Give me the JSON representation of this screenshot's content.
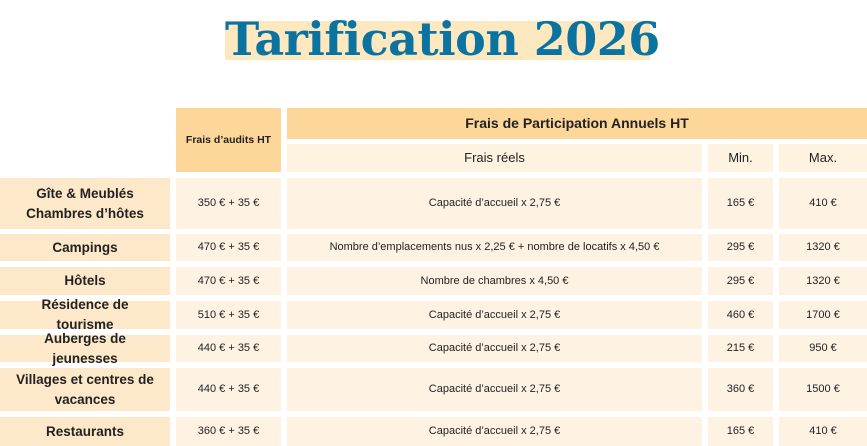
{
  "title": "Tarification 2026",
  "colors": {
    "title": "#0a73a0",
    "title_highlight": "#fde8c0",
    "header": "#fdd699",
    "label_cell": "#fde9c9",
    "value_cell": "#fef3e3"
  },
  "header": {
    "audit": "Frais d’audits HT",
    "participation": "Frais de Participation Annuels HT",
    "real": "Frais réels",
    "min": "Min.",
    "max": "Max."
  },
  "rows": [
    {
      "label": "Gîte & Meublés Chambres d’hôtes",
      "audit": "350 € + 35 €",
      "real": "Capacité d’accueil x 2,75 €",
      "min": "165 €",
      "max": "410 €"
    },
    {
      "label": "Campings",
      "audit": "470 € + 35 €",
      "real": "Nombre d’emplacements nus x 2,25 € + nombre de locatifs x 4,50 €",
      "min": "295 €",
      "max": "1320 €"
    },
    {
      "label": "Hôtels",
      "audit": "470 € + 35 €",
      "real": "Nombre de chambres x 4,50 €",
      "min": "295 €",
      "max": "1320 €"
    },
    {
      "label": "Résidence de tourisme",
      "audit": "510 € + 35 €",
      "real": "Capacité d’accueil x 2,75 €",
      "min": "460 €",
      "max": "1700 €"
    },
    {
      "label": "Auberges de jeunesses",
      "audit": "440 € + 35 €",
      "real": "Capacité d’accueil x 2,75 €",
      "min": "215 €",
      "max": "950 €"
    },
    {
      "label": "Villages et centres de vacances",
      "audit": "440 € + 35 €",
      "real": "Capacité d’accueil x 2,75 €",
      "min": "360 €",
      "max": "1500 €"
    },
    {
      "label": "Restaurants",
      "audit": "360 € + 35 €",
      "real": "Capacité d’accueil x 2,75 €",
      "min": "165 €",
      "max": "410 €"
    }
  ]
}
